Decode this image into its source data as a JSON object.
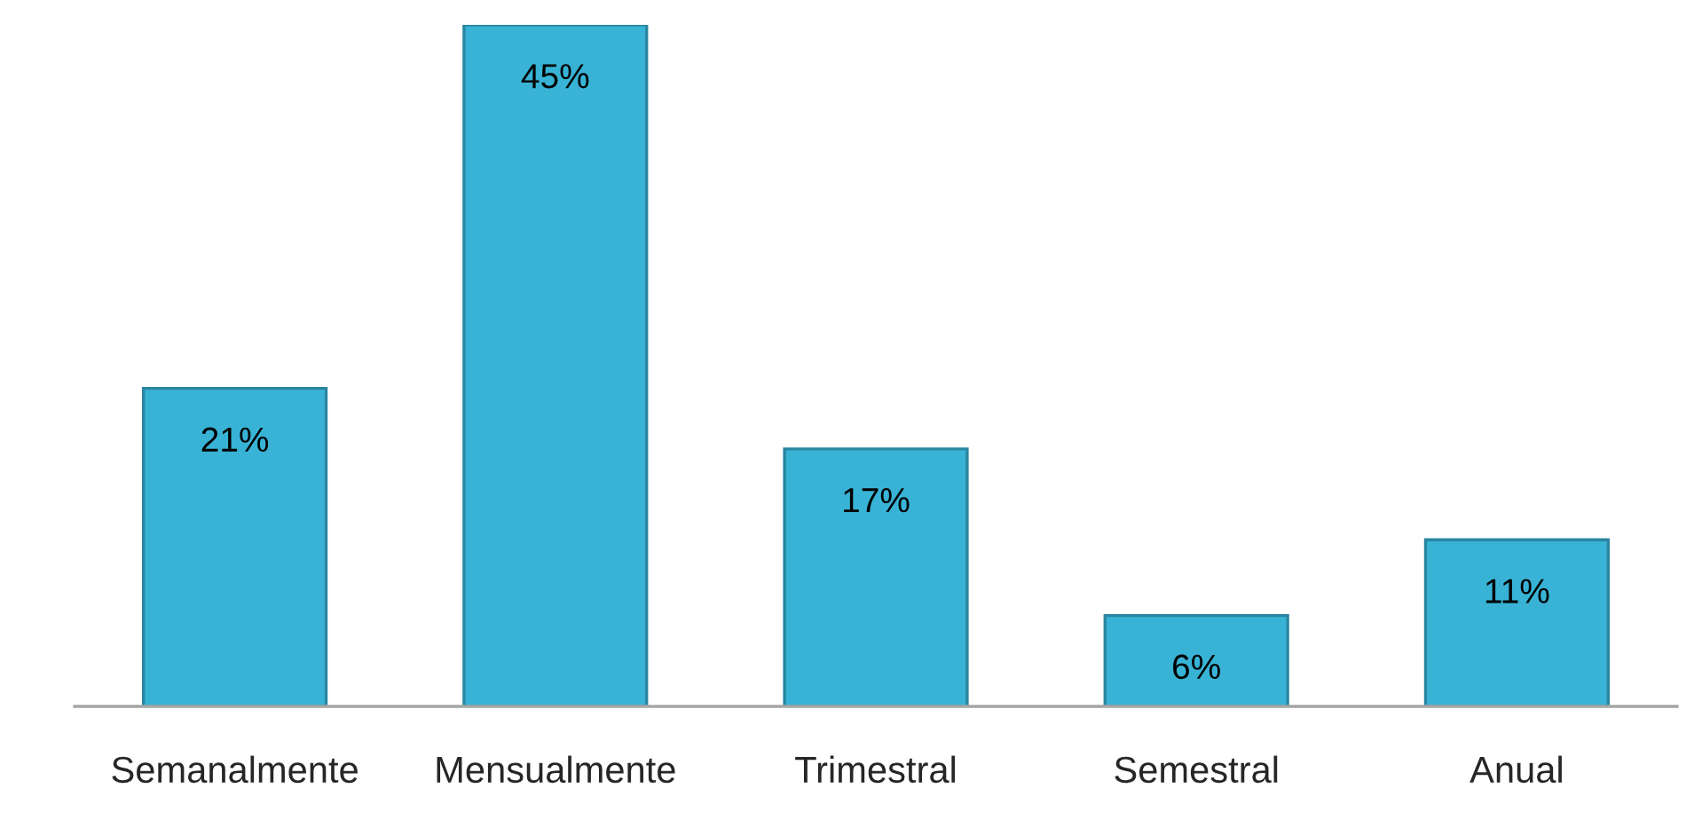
{
  "chart_data": {
    "type": "bar",
    "categories": [
      "Semanalmente",
      "Mensualmente",
      "Trimestral",
      "Semestral",
      "Anual"
    ],
    "values": [
      21,
      45,
      17,
      6,
      11
    ],
    "value_labels": [
      "21%",
      "45%",
      "17%",
      "6%",
      "11%"
    ],
    "color": "#38b3d6"
  }
}
